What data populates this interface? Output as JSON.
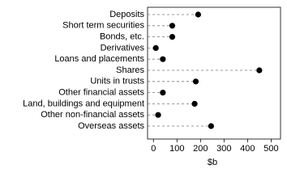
{
  "chart_data": {
    "type": "dot",
    "xlabel": "$b",
    "categories": [
      "Deposits",
      "Short term securities",
      "Bonds, etc.",
      "Derivatives",
      "Loans and placements",
      "Shares",
      "Units in trusts",
      "Other financial assets",
      "Land, buildings and equipment",
      "Other non-financial assets",
      "Overseas assets"
    ],
    "values": [
      190,
      80,
      80,
      10,
      40,
      450,
      180,
      40,
      175,
      20,
      245
    ],
    "color": "#000000",
    "xlim": [
      -25,
      540
    ],
    "xticks": [
      0,
      100,
      200,
      300,
      400,
      500
    ]
  }
}
